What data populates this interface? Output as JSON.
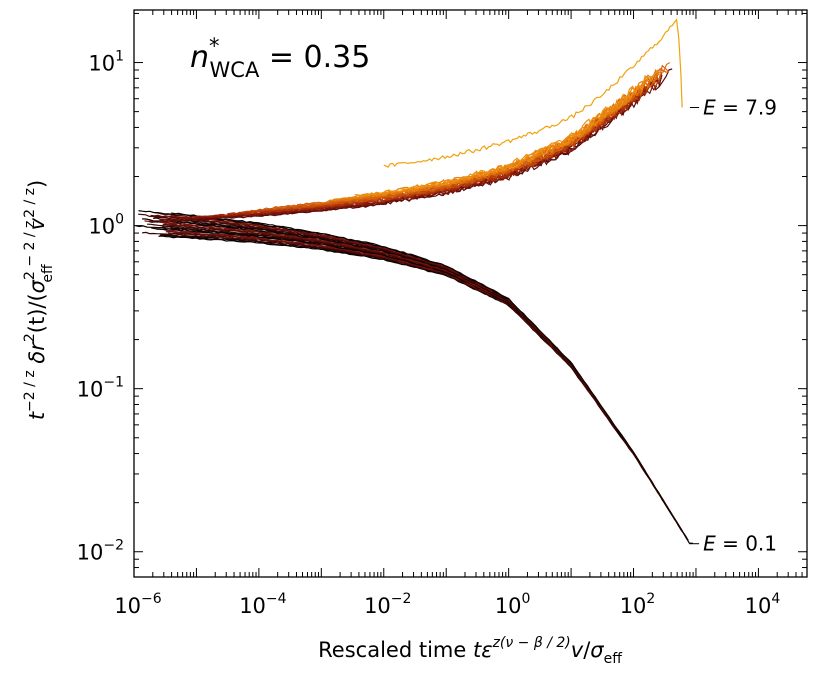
{
  "chart_data": {
    "type": "line",
    "xscale": "log",
    "yscale": "log",
    "xlim": [
      1e-06,
      60000
    ],
    "ylim": [
      0.007,
      21
    ],
    "xticks": [
      {
        "value": 1e-06,
        "base": "10",
        "exp": "−6"
      },
      {
        "value": 0.0001,
        "base": "10",
        "exp": "−4"
      },
      {
        "value": 0.01,
        "base": "10",
        "exp": "−2"
      },
      {
        "value": 1,
        "base": "10",
        "exp": "0"
      },
      {
        "value": 100,
        "base": "10",
        "exp": "2"
      },
      {
        "value": 10000,
        "base": "10",
        "exp": "4"
      }
    ],
    "yticks": [
      {
        "value": 0.01,
        "base": "10",
        "exp": "−2"
      },
      {
        "value": 0.1,
        "base": "10",
        "exp": "−1"
      },
      {
        "value": 1,
        "base": "10",
        "exp": "0"
      },
      {
        "value": 10,
        "base": "10",
        "exp": "1"
      }
    ],
    "title_label": {
      "main": "n",
      "sup": "*",
      "sub": "WCA",
      "value": " = 0.35"
    },
    "xlabel": {
      "prefix": "Rescaled time ",
      "t": "t",
      "eps": "ε",
      "exp": "z(ν − β / 2)",
      "v": "v",
      "slash": "/",
      "sigma": "σ",
      "sigma_sub": "eff"
    },
    "ylabel": {
      "t": "t",
      "t_exp": "−2 / z",
      "delta": " δ",
      "r": "r",
      "r_exp": "2",
      "paren": "(t)/(",
      "sigma": "σ",
      "sigma_sup": "2 − 2 / z",
      "sigma_sub": "eff",
      "v": "v",
      "v_exp": "2 / z",
      "close": ")"
    },
    "annotations": [
      {
        "text_e": "E",
        "text_val": " = 7.9",
        "anchor": {
          "x": 800,
          "y": 5.3
        },
        "label_pos": {
          "x": 1300,
          "y": 5.3
        }
      },
      {
        "text_e": "E",
        "text_val": " = 0.1",
        "anchor": {
          "x": 780,
          "y": 0.0112
        },
        "label_pos": {
          "x": 1300,
          "y": 0.0112
        }
      }
    ],
    "upper_family": {
      "description": "high-E curves (orange), rising with rescaled time",
      "count": 26,
      "points_x": [
        1e-06,
        1e-05,
        0.0001,
        0.001,
        0.01,
        0.1,
        1,
        10,
        100,
        400
      ],
      "center_y": [
        1.12,
        1.18,
        1.24,
        1.33,
        1.48,
        1.72,
        2.15,
        3.2,
        6.2,
        9.5
      ],
      "colors": [
        "#5a0c0c",
        "#7a1408",
        "#93200a",
        "#a8300a",
        "#bb420b",
        "#c9520c",
        "#d5620d",
        "#df720e",
        "#e7820f",
        "#ee9010"
      ]
    },
    "outlier_curve": {
      "x": [
        0.01,
        0.03,
        0.1,
        0.3,
        1,
        3,
        10,
        30,
        100,
        300,
        500,
        560,
        600
      ],
      "y": [
        2.3,
        2.45,
        2.65,
        2.9,
        3.3,
        3.8,
        4.6,
        6.2,
        9.5,
        14.5,
        18.5,
        11,
        5.3
      ],
      "color": "#f1a20e"
    },
    "lower_family": {
      "description": "low-E curves (dark), decaying with rescaled time",
      "count": 26,
      "points_x": [
        1e-06,
        1e-05,
        0.0001,
        0.001,
        0.01,
        0.1,
        1,
        10,
        100,
        800
      ],
      "center_y": [
        1.05,
        0.98,
        0.9,
        0.8,
        0.68,
        0.53,
        0.34,
        0.14,
        0.04,
        0.0112
      ],
      "colors": [
        "#000000",
        "#140302",
        "#260504",
        "#380706",
        "#4a0a08",
        "#5c0d0a",
        "#6d110b",
        "#7e160c"
      ]
    }
  }
}
